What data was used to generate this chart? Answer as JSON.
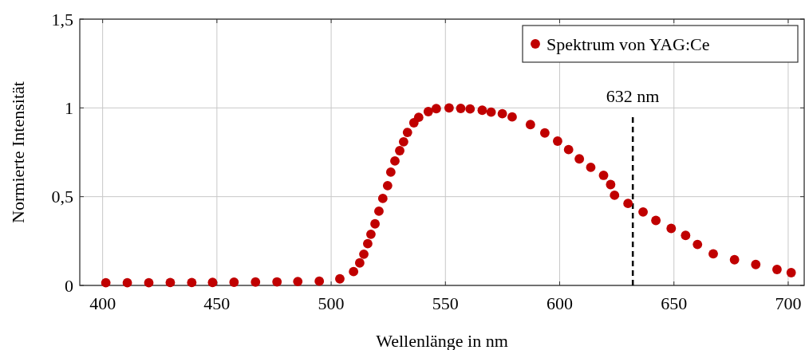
{
  "chart_data": {
    "type": "scatter",
    "xlabel": "Wellenlänge in nm",
    "ylabel": "Normierte Intensität",
    "xlim": [
      390,
      707
    ],
    "ylim": [
      0,
      1.5
    ],
    "xticks": [
      400,
      450,
      500,
      550,
      600,
      650,
      700
    ],
    "yticks": [
      0,
      {
        "value": 0.5,
        "label": "0,5"
      },
      1,
      {
        "value": 1.5,
        "label": "1,5"
      }
    ],
    "grid": true,
    "legend": "top right",
    "marker": "circle",
    "ref_lines": [
      {
        "axis": "x",
        "value": 632,
        "label": "632 nm",
        "color": "#000000",
        "line_style": "dashed"
      }
    ],
    "series": [
      {
        "name": "Spektrum von YAG:Ce",
        "color": "#c00000",
        "x": [
          401.4,
          410.8,
          420.2,
          429.6,
          439.0,
          448.1,
          457.5,
          466.9,
          476.3,
          485.4,
          494.8,
          503.8,
          509.8,
          512.5,
          514.3,
          516.0,
          517.4,
          519.2,
          520.9,
          522.6,
          524.7,
          526.1,
          527.9,
          530.0,
          531.7,
          533.4,
          536.2,
          538.3,
          542.5,
          546.0,
          551.6,
          556.7,
          560.8,
          566.1,
          570.0,
          574.9,
          579.2,
          587.2,
          593.5,
          599.1,
          603.9,
          608.6,
          613.6,
          619.2,
          622.3,
          624.0,
          629.9,
          636.5,
          642.1,
          648.8,
          655.1,
          660.3,
          667.2,
          676.5,
          685.8,
          695.1,
          701.3
        ],
        "values": [
          0.015,
          0.015,
          0.015,
          0.016,
          0.016,
          0.017,
          0.018,
          0.019,
          0.02,
          0.022,
          0.024,
          0.037,
          0.078,
          0.127,
          0.176,
          0.235,
          0.288,
          0.347,
          0.418,
          0.49,
          0.562,
          0.638,
          0.701,
          0.759,
          0.809,
          0.862,
          0.916,
          0.947,
          0.979,
          0.996,
          1.0,
          0.997,
          0.994,
          0.987,
          0.976,
          0.967,
          0.949,
          0.906,
          0.859,
          0.813,
          0.765,
          0.713,
          0.665,
          0.62,
          0.568,
          0.508,
          0.462,
          0.414,
          0.366,
          0.321,
          0.282,
          0.231,
          0.178,
          0.145,
          0.118,
          0.09,
          0.072
        ]
      }
    ]
  }
}
